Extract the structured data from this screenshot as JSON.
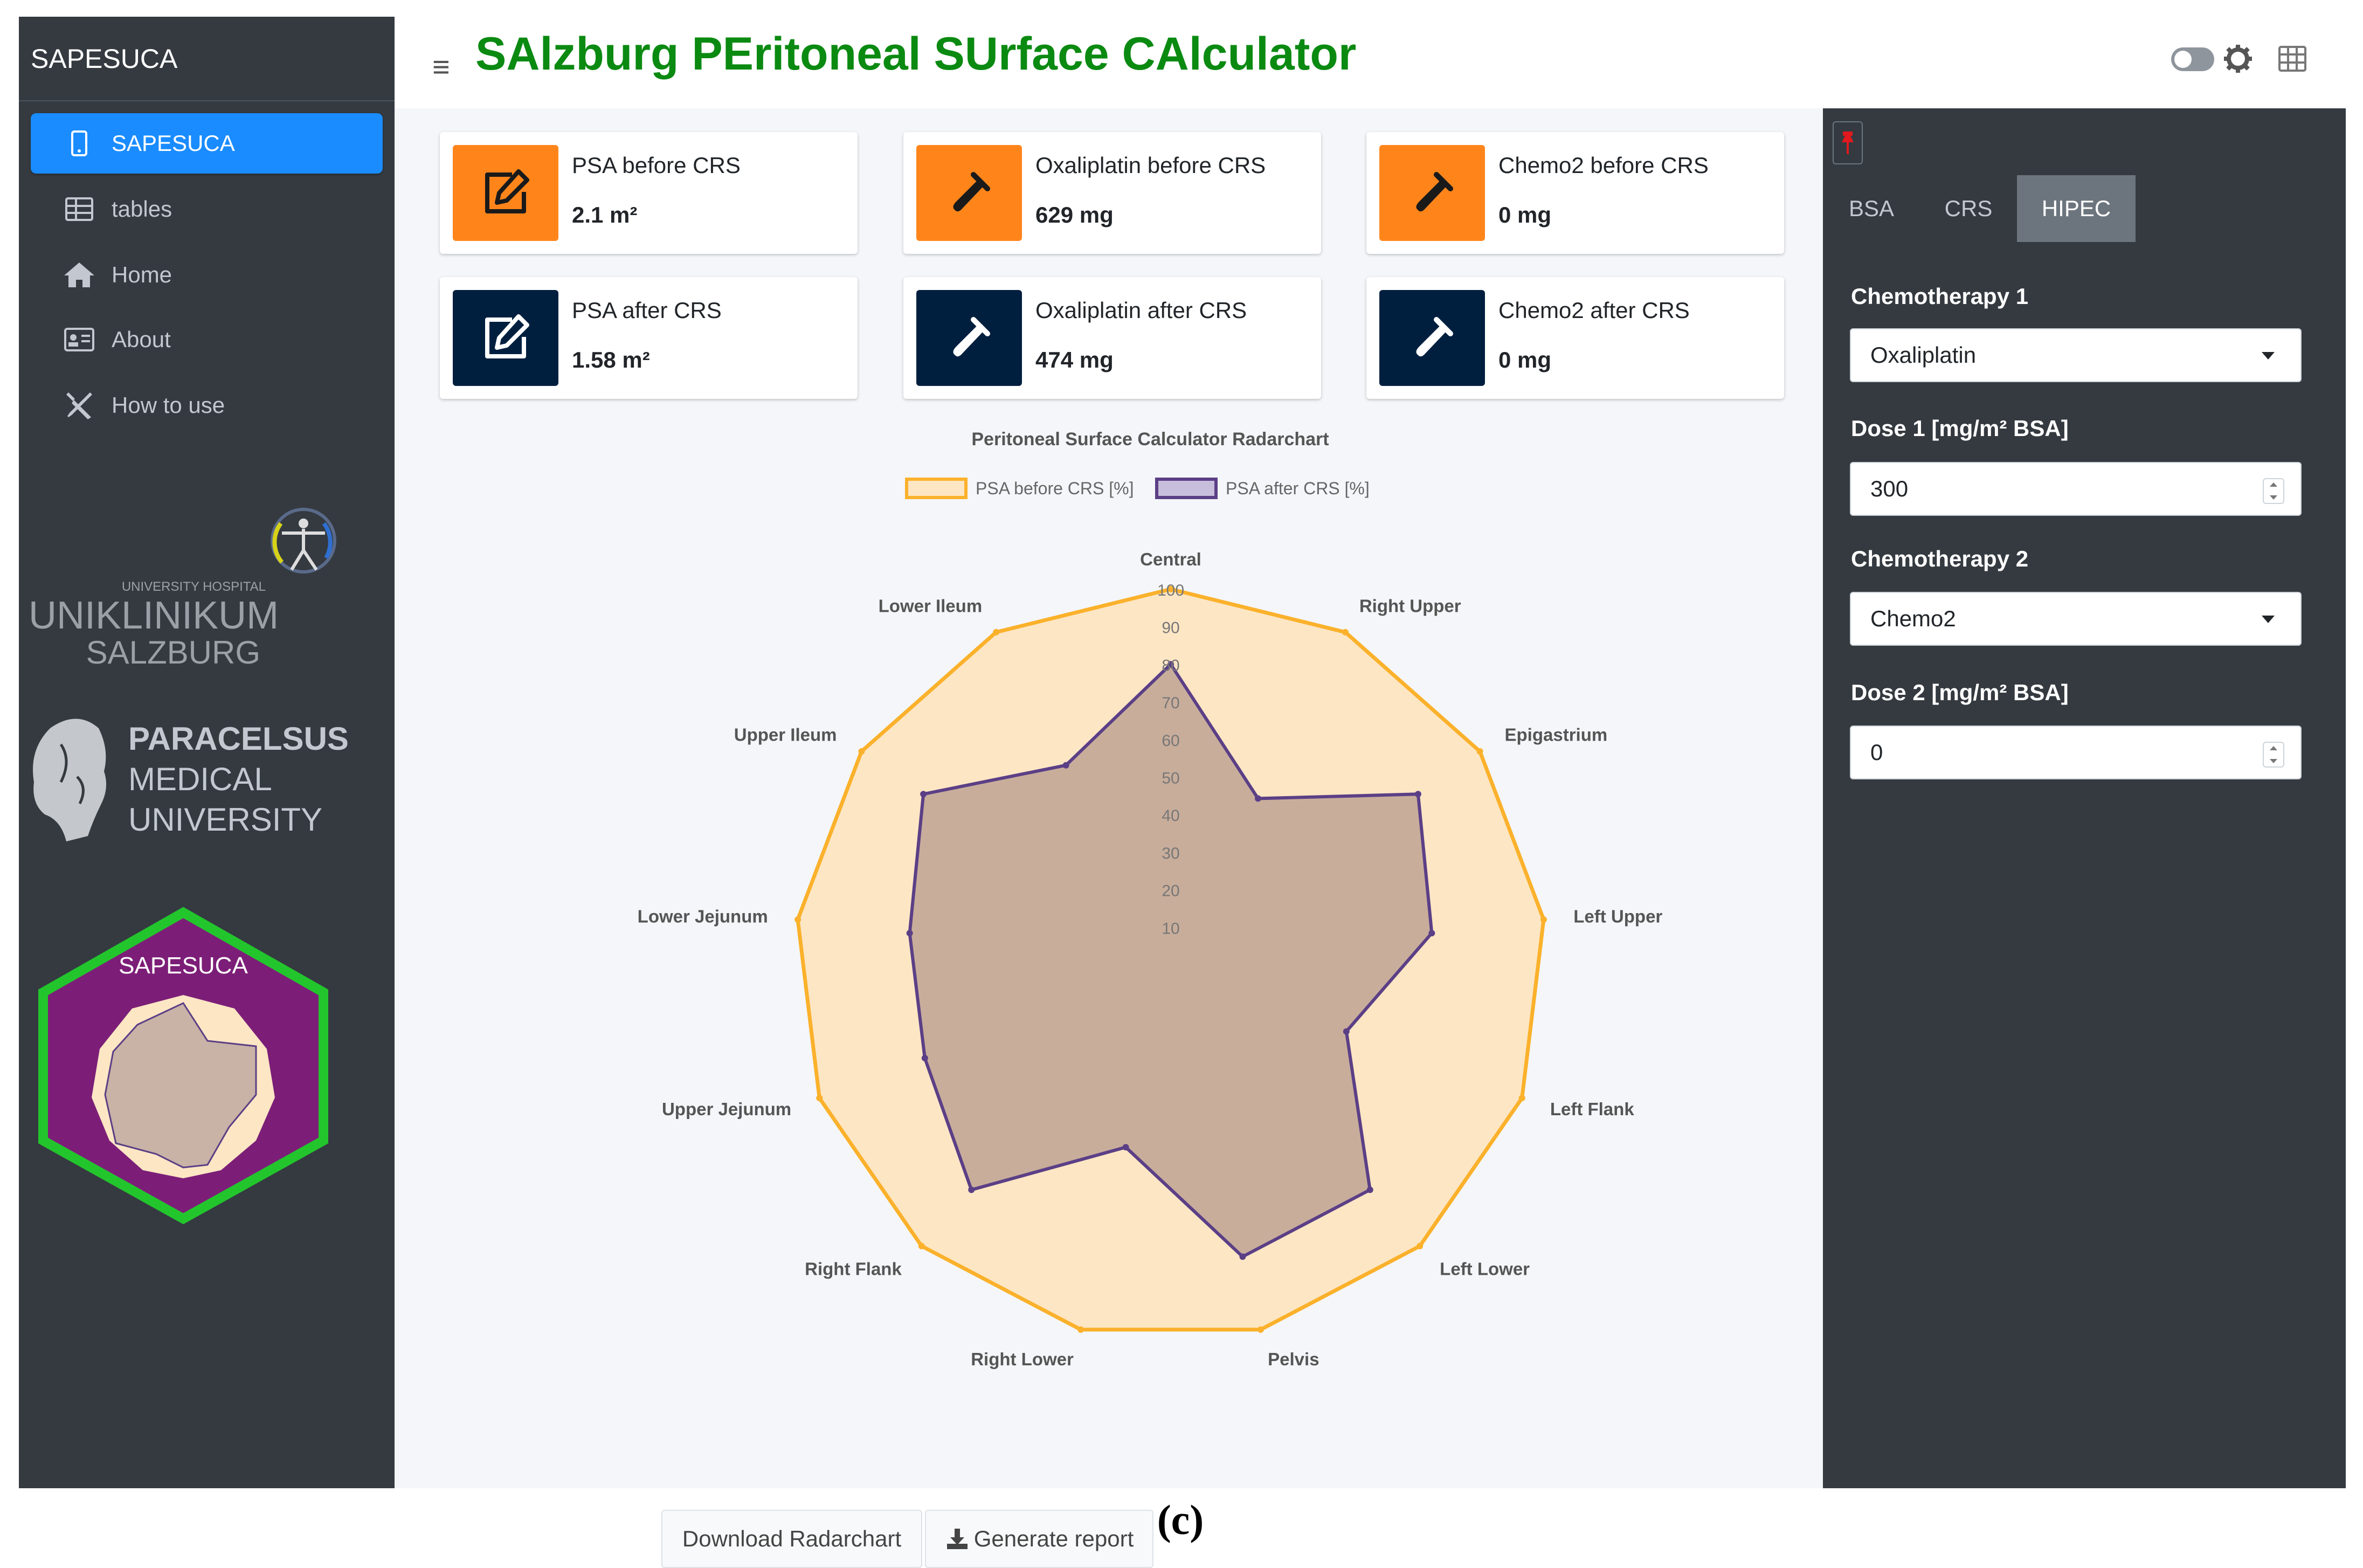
{
  "app": {
    "brand": "SAPESUCA",
    "title": "SAlzburg PEritoneal SUrface CAlculator",
    "caption": "(c)"
  },
  "sidebar": {
    "items": [
      {
        "label": "SAPESUCA",
        "icon": "tablet-icon",
        "active": true
      },
      {
        "label": "tables",
        "icon": "table-icon",
        "active": false
      },
      {
        "label": "Home",
        "icon": "home-icon",
        "active": false
      },
      {
        "label": "About",
        "icon": "id-card-icon",
        "active": false
      },
      {
        "label": "How to use",
        "icon": "tools-icon",
        "active": false
      }
    ],
    "logos": {
      "uniklinikum_small": "UNIVERSITY HOSPITAL",
      "uniklinikum_line1": "UNIKLINIKUM",
      "uniklinikum_line2": "SALZBURG",
      "pmu_line1": "PARACELSUS",
      "pmu_line2": "MEDICAL",
      "pmu_line3": "UNIVERSITY",
      "hex_label": "SAPESUCA"
    }
  },
  "info_boxes": [
    {
      "label": "PSA before CRS",
      "value": "2.1 m²",
      "icon": "edit-icon",
      "color": "#ff851b"
    },
    {
      "label": "Oxaliplatin before CRS",
      "value": "629 mg",
      "icon": "syringe-icon",
      "color": "#ff851b"
    },
    {
      "label": "Chemo2 before CRS",
      "value": "0 mg",
      "icon": "syringe-icon",
      "color": "#ff851b"
    },
    {
      "label": "PSA after CRS",
      "value": "1.58 m²",
      "icon": "edit-icon",
      "color": "#001f3f"
    },
    {
      "label": "Oxaliplatin after CRS",
      "value": "474 mg",
      "icon": "syringe-icon",
      "color": "#001f3f"
    },
    {
      "label": "Chemo2 after CRS",
      "value": "0 mg",
      "icon": "syringe-icon",
      "color": "#001f3f"
    }
  ],
  "chart_data": {
    "type": "radar",
    "title": "Peritoneal Surface Calculator Radarchart",
    "categories": [
      "Central",
      "Right Upper",
      "Epigastrium",
      "Left Upper",
      "Left Flank",
      "Left Lower",
      "Pelvis",
      "Right Lower",
      "Right Flank",
      "Upper Jejunum",
      "Lower Jejunum",
      "Upper Ileum",
      "Lower Ileum"
    ],
    "ticks": [
      "10",
      "20",
      "30",
      "40",
      "50",
      "60",
      "70",
      "80",
      "90",
      "100"
    ],
    "rmax": 100,
    "legend_position": "top",
    "series": [
      {
        "name": "PSA before CRS [%]",
        "values": [
          100,
          100,
          100,
          100,
          100,
          100,
          100,
          100,
          100,
          100,
          100,
          100,
          100
        ],
        "stroke": "#fbb12b",
        "fill": "#fde6c4"
      },
      {
        "name": "PSA after CRS [%]",
        "values": [
          80,
          50,
          80,
          70,
          50,
          80,
          80,
          50,
          80,
          70,
          70,
          80,
          60
        ],
        "stroke": "#5b3f86",
        "fill": "#b59a8e"
      }
    ]
  },
  "buttons": {
    "download": "Download Radarchart",
    "report": "Generate report"
  },
  "control_panel": {
    "tabs": [
      {
        "label": "BSA",
        "active": false
      },
      {
        "label": "CRS",
        "active": false
      },
      {
        "label": "HIPEC",
        "active": true
      }
    ],
    "chemo1_label": "Chemotherapy 1",
    "chemo1_value": "Oxaliplatin",
    "dose1_label": "Dose 1 [mg/m² BSA]",
    "dose1_value": "300",
    "chemo2_label": "Chemotherapy 2",
    "chemo2_value": "Chemo2",
    "dose2_label": "Dose 2 [mg/m² BSA]",
    "dose2_value": "0"
  }
}
